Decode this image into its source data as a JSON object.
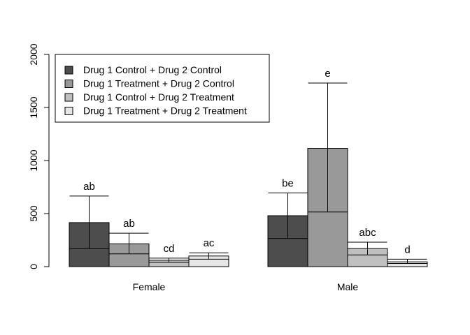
{
  "chart_data": {
    "type": "bar",
    "categories": [
      "Female",
      "Male"
    ],
    "series": [
      {
        "name": "Drug 1 Control + Drug 2 Control",
        "color": "#4d4d4d",
        "values": [
          415,
          480
        ],
        "lower": [
          170,
          265
        ],
        "upper": [
          665,
          695
        ],
        "labels": [
          "ab",
          "be"
        ]
      },
      {
        "name": "Drug 1 Treatment + Drug 2 Control",
        "color": "#999999",
        "values": [
          215,
          1115
        ],
        "lower": [
          120,
          515
        ],
        "upper": [
          315,
          1730
        ],
        "labels": [
          "ab",
          "e"
        ]
      },
      {
        "name": "Drug 1 Control + Drug 2 Treatment",
        "color": "#c0c0c0",
        "values": [
          60,
          170
        ],
        "lower": [
          40,
          110
        ],
        "upper": [
          80,
          230
        ],
        "labels": [
          "cd",
          "abc"
        ]
      },
      {
        "name": "Drug 1 Treatment + Drug 2 Treatment",
        "color": "#e6e6e6",
        "values": [
          100,
          45
        ],
        "lower": [
          70,
          30
        ],
        "upper": [
          130,
          70
        ],
        "labels": [
          "ac",
          "d"
        ]
      }
    ],
    "y_ticks": [
      "0",
      "500",
      "1000",
      "1500",
      "2000"
    ],
    "ylim": [
      0,
      2000
    ],
    "title": "",
    "xlabel": "",
    "ylabel": "",
    "legend": "top-left",
    "grid": false
  }
}
